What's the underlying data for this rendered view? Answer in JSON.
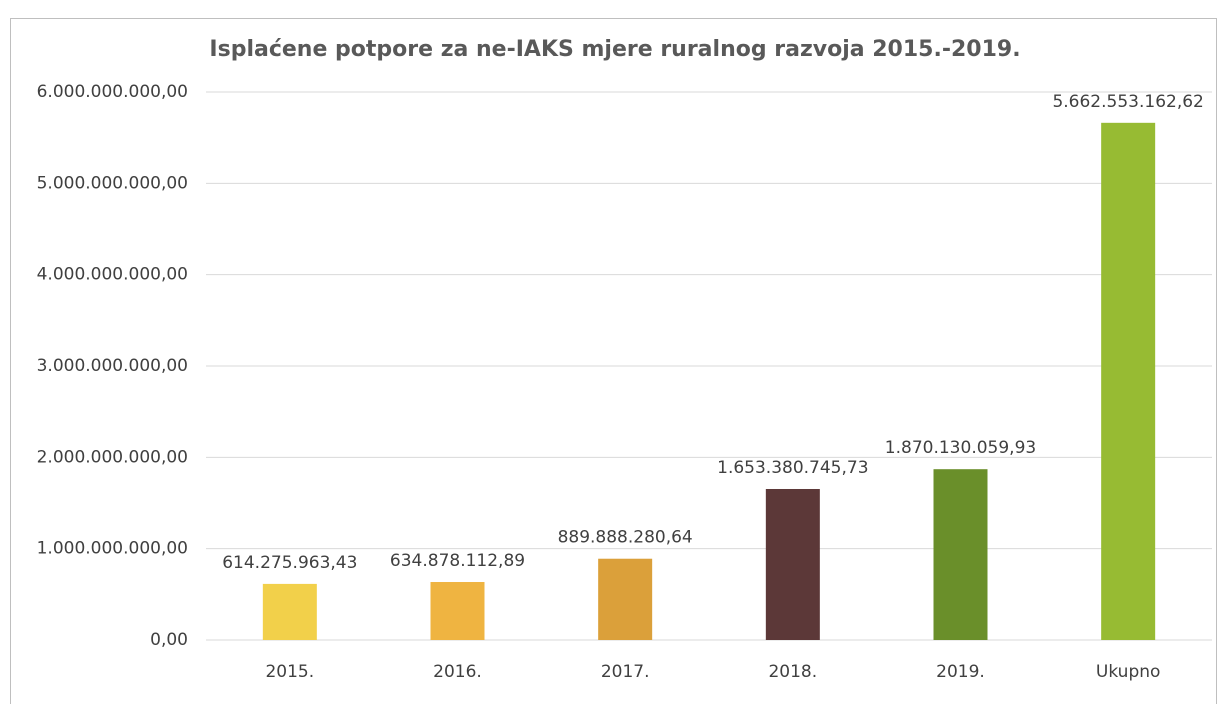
{
  "chart_data": {
    "type": "bar",
    "title": "Isplaćene potpore za ne-IAKS mjere ruralnog razvoja 2015.-2019.",
    "categories": [
      "2015.",
      "2016.",
      "2017.",
      "2018.",
      "2019.",
      "Ukupno"
    ],
    "values": [
      614275963.43,
      634878112.89,
      889888280.64,
      1653380745.73,
      1870130059.93,
      5662553162.62
    ],
    "value_labels": [
      "614.275.963,43",
      "634.878.112,89",
      "889.888.280,64",
      "1.653.380.745,73",
      "1.870.130.059,93",
      "5.662.553.162,62"
    ],
    "colors": [
      "#f2d04a",
      "#efb441",
      "#dba03a",
      "#5c3838",
      "#6a8f2a",
      "#97bb33"
    ],
    "ylim": [
      0,
      6000000000
    ],
    "yticks": [
      {
        "value": 0,
        "label": "0,00"
      },
      {
        "value": 1000000000,
        "label": "1.000.000.000,00"
      },
      {
        "value": 2000000000,
        "label": "2.000.000.000,00"
      },
      {
        "value": 3000000000,
        "label": "3.000.000.000,00"
      },
      {
        "value": 4000000000,
        "label": "4.000.000.000,00"
      },
      {
        "value": 5000000000,
        "label": "5.000.000.000,00"
      },
      {
        "value": 6000000000,
        "label": "6.000.000.000,00"
      }
    ],
    "grid": true
  }
}
